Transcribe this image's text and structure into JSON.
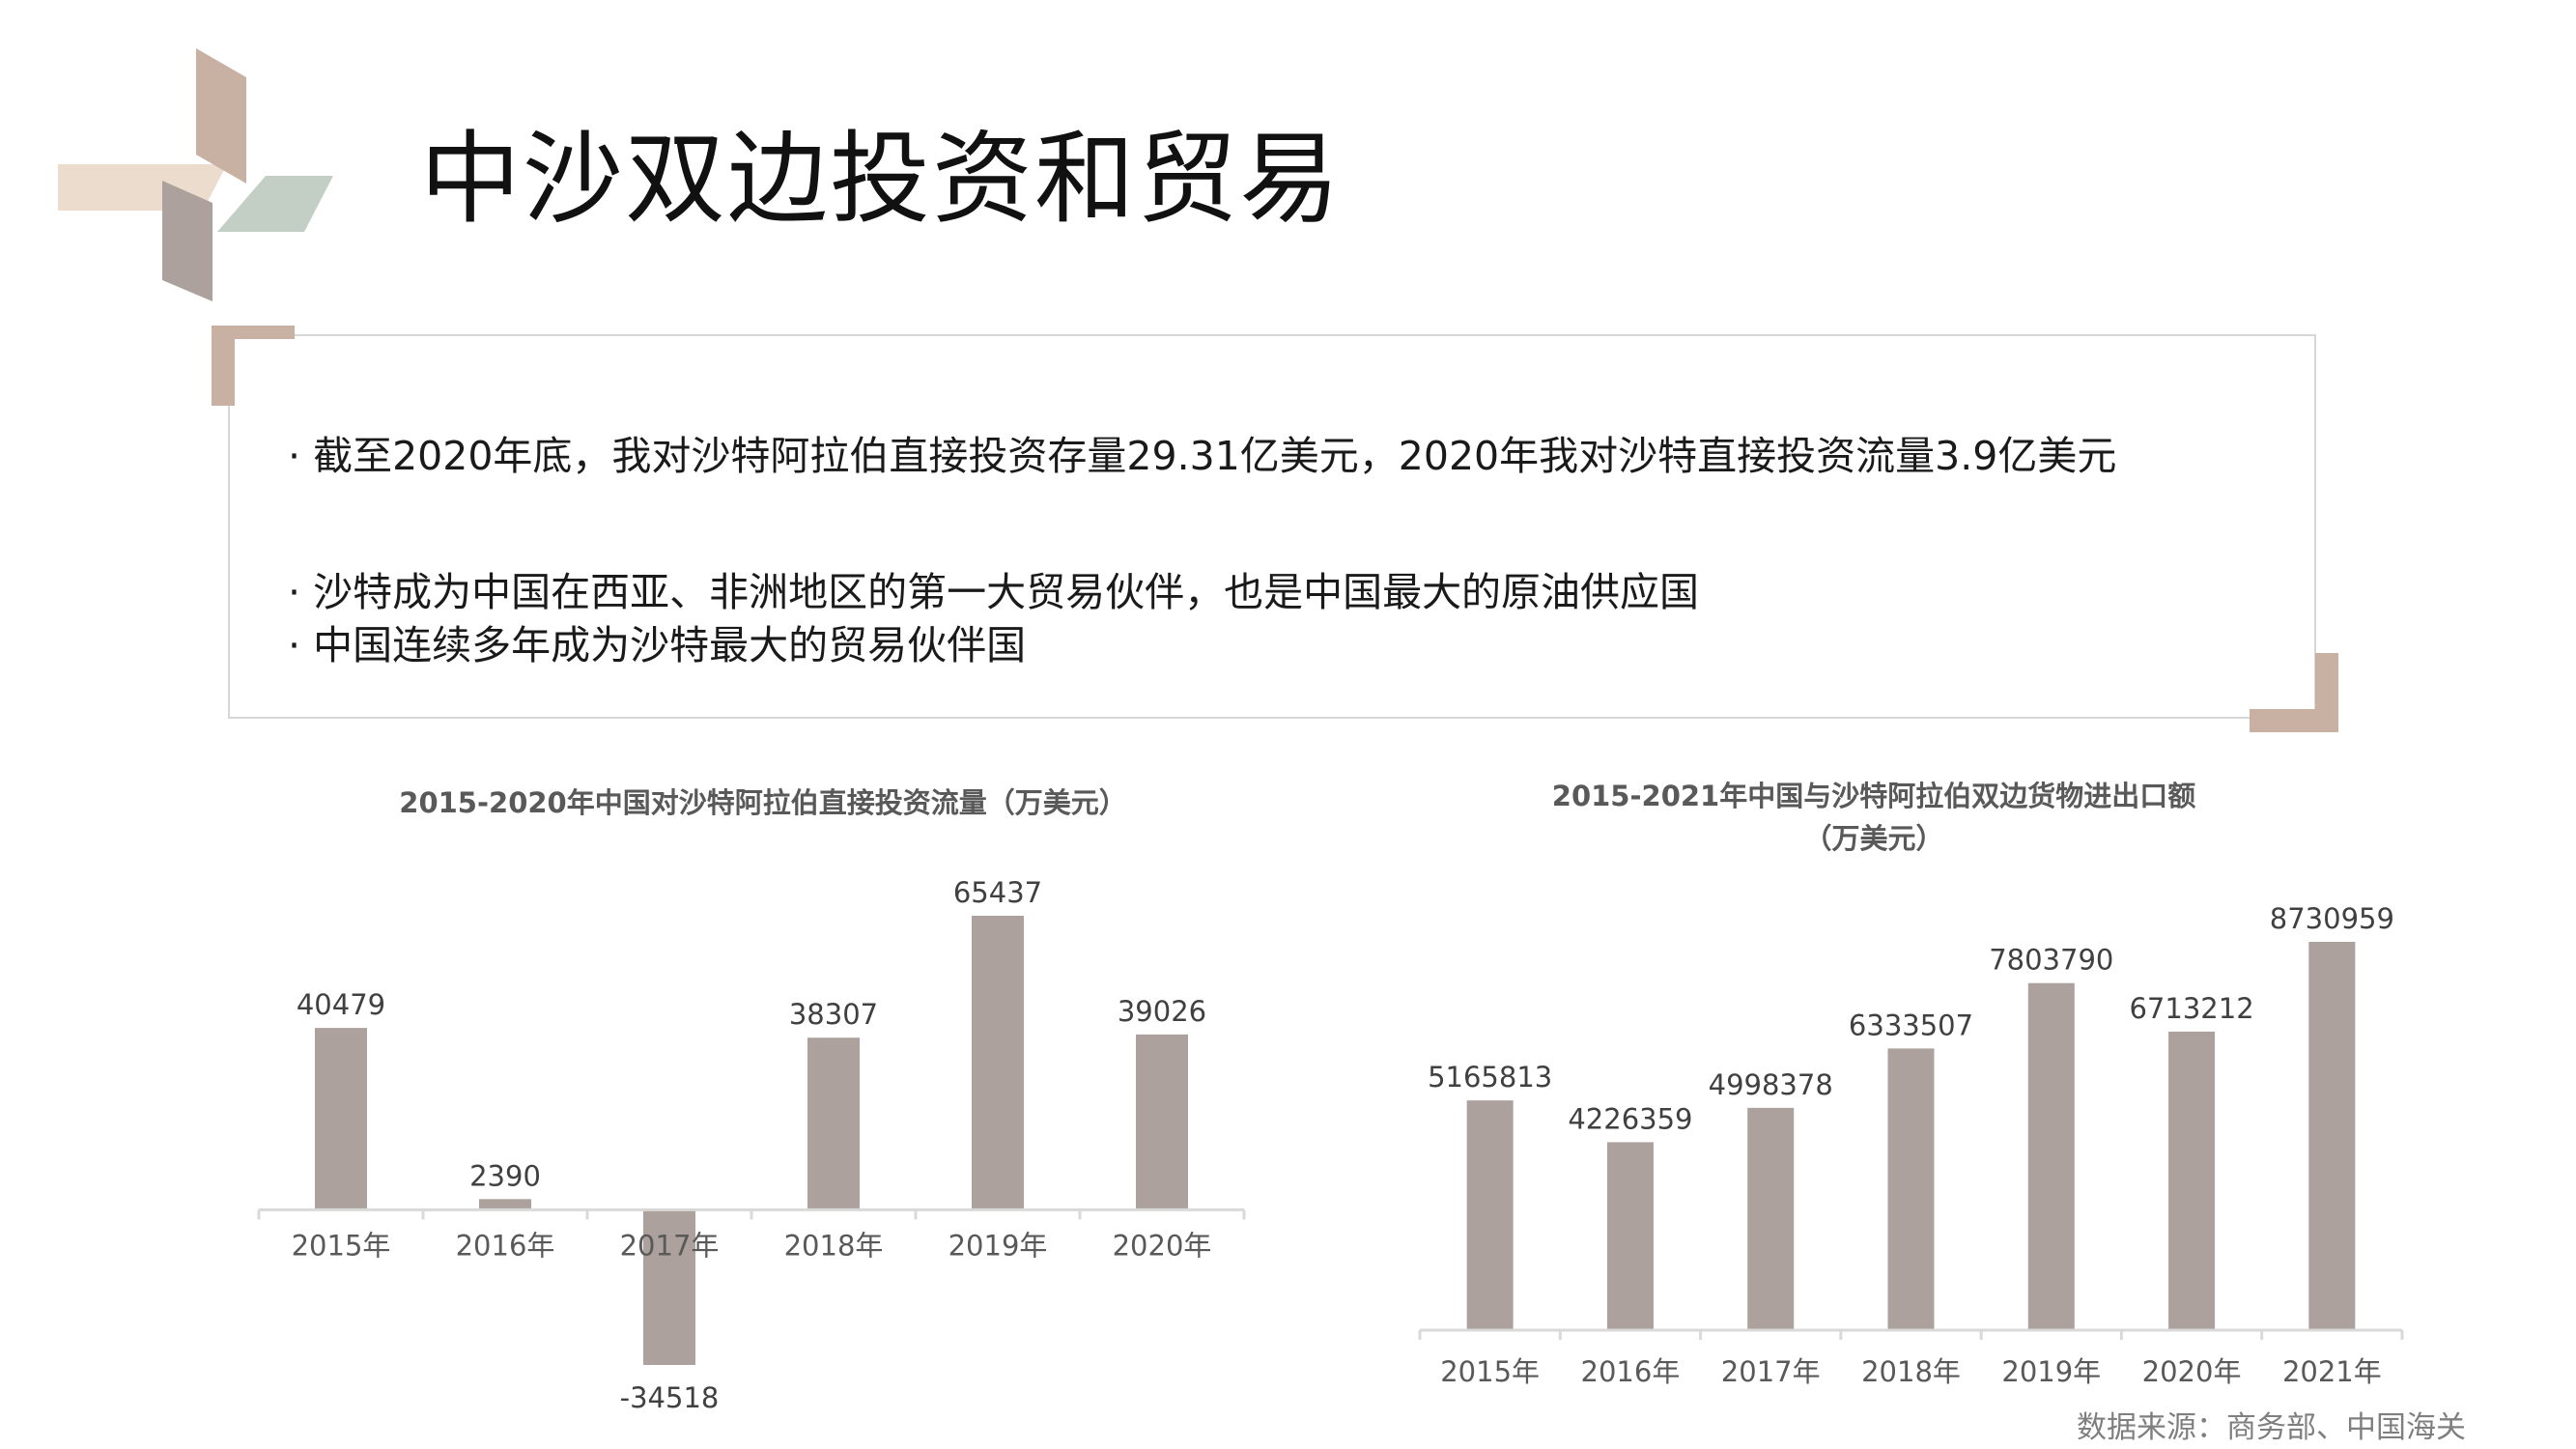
{
  "slide": {
    "title": "中沙双边投资和贸易",
    "bullets": [
      "·  截至2020年底，我对沙特阿拉伯直接投资存量29.31亿美元，2020年我对沙特直接投资流量3.9亿美元",
      "· 沙特成为中国在西亚、非洲地区的第一大贸易伙伴，也是中国最大的原油供应国",
      "· 中国连续多年成为沙特最大的贸易伙伴国"
    ],
    "source": "数据来源：商务部、中国海关"
  },
  "colors": {
    "bar": "#aca19d",
    "axis": "#d9d9d9",
    "corner_accent": "#c8b1a3",
    "logo_peach": "#ebdccd",
    "logo_tan": "#c8b1a3",
    "logo_sage": "#c3cec4",
    "logo_mauve": "#aca19d"
  },
  "chart_data": [
    {
      "type": "bar",
      "title": "2015-2020年中国对沙特阿拉伯直接投资流量（万美元）",
      "categories": [
        "2015年",
        "2016年",
        "2017年",
        "2018年",
        "2019年",
        "2020年"
      ],
      "values": [
        40479,
        2390,
        -34518,
        38307,
        65437,
        39026
      ],
      "data_labels": [
        "40479",
        "2390",
        "-34518",
        "38307",
        "65437",
        "39026"
      ],
      "ylim": [
        -34518,
        65437
      ],
      "grid": false,
      "legend": "none"
    },
    {
      "type": "bar",
      "title": "2015-2021年中国与沙特阿拉伯双边货物进出口额",
      "subtitle": "（万美元）",
      "categories": [
        "2015年",
        "2016年",
        "2017年",
        "2018年",
        "2019年",
        "2020年",
        "2021年"
      ],
      "values": [
        5165813,
        4226359,
        4998378,
        6333507,
        7803790,
        6713212,
        8730959
      ],
      "data_labels": [
        "5165813",
        "4226359",
        "4998378",
        "6333507",
        "7803790",
        "6713212",
        "8730959"
      ],
      "ylim": [
        0,
        8730959
      ],
      "grid": false,
      "legend": "none"
    }
  ]
}
